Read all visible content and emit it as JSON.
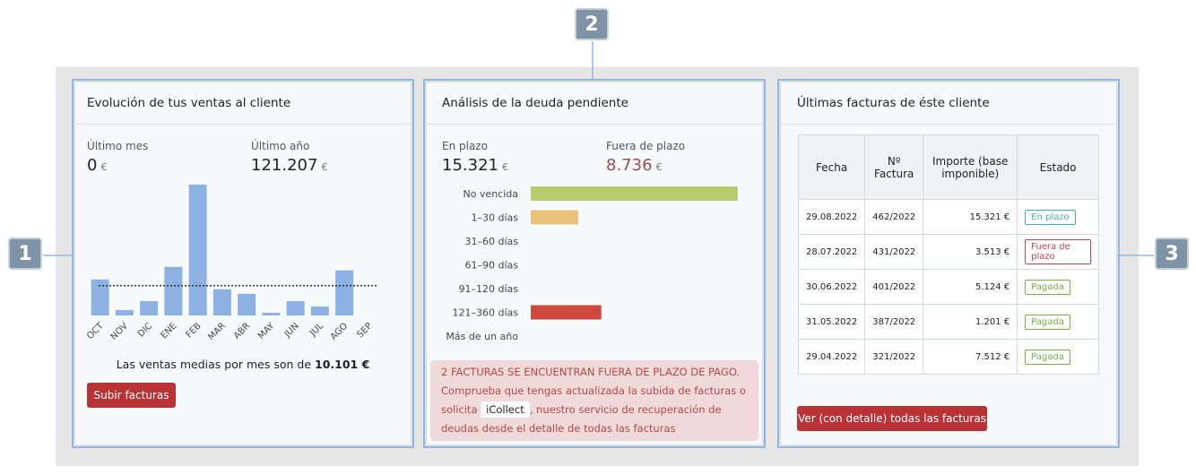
{
  "callouts": [
    "1",
    "2",
    "3"
  ],
  "sales": {
    "title": "Evolución de tus ventas al cliente",
    "last_month_label": "Último mes",
    "last_month_value": "0",
    "currency": "€",
    "last_year_label": "Último año",
    "last_year_value": "121.207",
    "average_text": "Las ventas medias por mes son de ",
    "button": "Subir facturas"
  },
  "debt": {
    "title": "Análisis de la deuda pendiente",
    "on_time_label": "En plazo",
    "on_time_value": "15.321",
    "currency": "€",
    "overdue_label": "Fuera de plazo",
    "overdue_value": "8.736",
    "notice_title": "2 FACTURAS SE ENCUENTRAN FUERA DE PLAZO DE PAGO.",
    "notice_text_1": "Comprueba que tengas actualizada la subida de facturas o solicita",
    "notice_badge": "iCollect",
    "notice_text_2": ", nuestro servicio de recuperación de deudas desde el detalle de todas las facturas"
  },
  "invoices": {
    "title": "Últimas facturas de éste cliente",
    "headers": [
      "Fecha",
      "Nº Factura",
      "Importe (base imponible)",
      "Estado"
    ],
    "rows": [
      {
        "date": "29.08.2022",
        "number": "462/2022",
        "amount": "15.321 €",
        "status": "En plazo",
        "status_color": "#45b3ab"
      },
      {
        "date": "28.07.2022",
        "number": "431/2022",
        "amount": "3.513 €",
        "status": "Fuera de plazo",
        "status_color": "#c9434e"
      },
      {
        "date": "30.06.2022",
        "number": "401/2022",
        "amount": "5.124 €",
        "status": "Pagada",
        "status_color": "#72b043"
      },
      {
        "date": "31.05.2022",
        "number": "387/2022",
        "amount": "1.201 €",
        "status": "Pagada",
        "status_color": "#72b043"
      },
      {
        "date": "29.04.2022",
        "number": "321/2022",
        "amount": "7.512 €",
        "status": "Pagada",
        "status_color": "#72b043"
      }
    ],
    "button": "Ver (con detalle) todas las facturas"
  },
  "chart_data": [
    {
      "type": "bar",
      "categories": [
        "OCT",
        "NOV",
        "DIC",
        "ENE",
        "FEB",
        "MAR",
        "ABR",
        "MAY",
        "JUN",
        "JUL",
        "AGO",
        "SEP"
      ],
      "values": [
        12240,
        1840,
        4900,
        16500,
        44400,
        8900,
        7350,
        920,
        4900,
        3060,
        15300,
        0
      ],
      "color": "#8eb1e3",
      "ylim": [
        0,
        45000
      ],
      "average": {
        "value": 10101,
        "label": "10.101 €"
      }
    },
    {
      "type": "hbar",
      "categories": [
        "No vencida",
        "1–30 días",
        "31–60 días",
        "61–90 días",
        "91–120 días",
        "121–360 días",
        "Más de un año"
      ],
      "values": [
        15321,
        3513,
        0,
        0,
        0,
        5223,
        0
      ],
      "colors": [
        "#b5cc6c",
        "#e8c379",
        "#cccccc",
        "#cccccc",
        "#cccccc",
        "#cf4a3e",
        "#cccccc"
      ],
      "xlim": [
        0,
        16000
      ]
    }
  ]
}
